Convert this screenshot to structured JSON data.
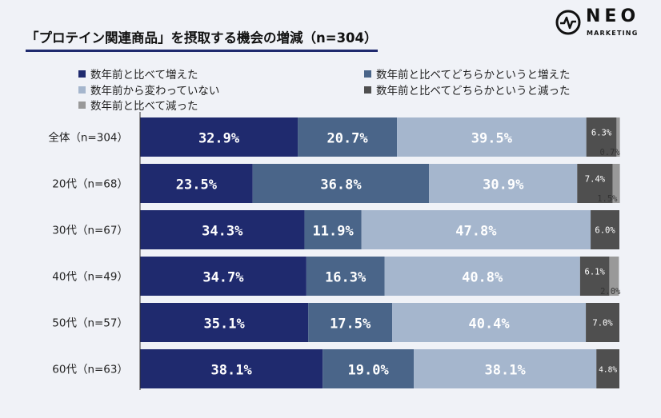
{
  "title": "「プロテイン関連商品」を摂取する機会の増減（n=304）",
  "logo": {
    "main": "NEO",
    "sub": "MARKETING"
  },
  "chart_data": {
    "type": "bar",
    "orientation": "horizontal",
    "stacked": true,
    "percent": true,
    "categories": [
      "全体（n=304）",
      "20代（n=68）",
      "30代（n=67）",
      "40代（n=49）",
      "50代（n=57）",
      "60代（n=63）"
    ],
    "series": [
      {
        "name": "数年前と比べて増えた",
        "color": "#1f2a6e",
        "values": [
          32.9,
          23.5,
          34.3,
          34.7,
          35.1,
          38.1
        ]
      },
      {
        "name": "数年前と比べてどちらかというと増えた",
        "color": "#4a6589",
        "values": [
          20.7,
          36.8,
          11.9,
          16.3,
          17.5,
          19.0
        ]
      },
      {
        "name": "数年前から変わっていない",
        "color": "#a5b6cd",
        "values": [
          39.5,
          30.9,
          47.8,
          40.8,
          40.4,
          38.1
        ]
      },
      {
        "name": "数年前と比べてどちらかというと減った",
        "color": "#4f4f4f",
        "values": [
          6.3,
          7.4,
          6.0,
          6.1,
          7.0,
          4.8
        ]
      },
      {
        "name": "数年前と比べて減った",
        "color": "#999999",
        "values": [
          0.7,
          1.5,
          0.0,
          2.0,
          0.0,
          0.0
        ]
      }
    ],
    "labels": [
      [
        "32.9%",
        "20.7%",
        "39.5%",
        "6.3%",
        "0.7%"
      ],
      [
        "23.5%",
        "36.8%",
        "30.9%",
        "7.4%",
        "1.5%"
      ],
      [
        "34.3%",
        "11.9%",
        "47.8%",
        "6.0%",
        ""
      ],
      [
        "34.7%",
        "16.3%",
        "40.8%",
        "6.1%",
        "2.0%"
      ],
      [
        "35.1%",
        "17.5%",
        "40.4%",
        "7.0%",
        ""
      ],
      [
        "38.1%",
        "19.0%",
        "38.1%",
        "4.8%",
        ""
      ]
    ],
    "legend_position": "top"
  }
}
